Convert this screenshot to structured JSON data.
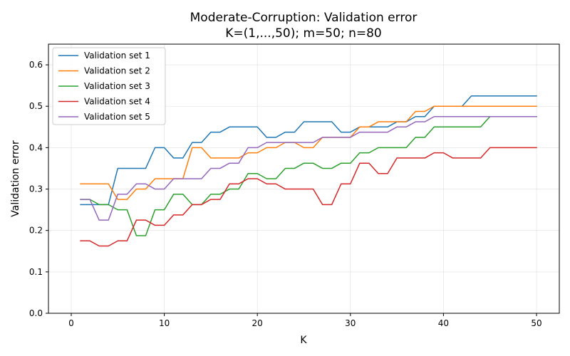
{
  "chart_data": {
    "type": "line",
    "title_line1": "Moderate-Corruption: Validation error",
    "title_line2": "K=(1,...,50); m=50; n=80",
    "xlabel": "K",
    "ylabel": "Validation error",
    "xlim": [
      -2.45,
      52.45
    ],
    "ylim": [
      0.0,
      0.65
    ],
    "xticks": [
      0,
      10,
      20,
      30,
      40,
      50
    ],
    "yticks": [
      0.0,
      0.1,
      0.2,
      0.3,
      0.4,
      0.5,
      0.6
    ],
    "xtick_labels": [
      "0",
      "10",
      "20",
      "30",
      "40",
      "50"
    ],
    "ytick_labels": [
      "0.0",
      "0.1",
      "0.2",
      "0.3",
      "0.4",
      "0.5",
      "0.6"
    ],
    "grid": true,
    "legend_position": "upper-left",
    "x": [
      1,
      2,
      3,
      4,
      5,
      6,
      7,
      8,
      9,
      10,
      11,
      12,
      13,
      14,
      15,
      16,
      17,
      18,
      19,
      20,
      21,
      22,
      23,
      24,
      25,
      26,
      27,
      28,
      29,
      30,
      31,
      32,
      33,
      34,
      35,
      36,
      37,
      38,
      39,
      40,
      41,
      42,
      43,
      44,
      45,
      46,
      47,
      48,
      49,
      50
    ],
    "series": [
      {
        "name": "Validation set 1",
        "color": "#1f77b4",
        "values": [
          0.2625,
          0.2625,
          0.2625,
          0.2625,
          0.35,
          0.35,
          0.35,
          0.35,
          0.4,
          0.4,
          0.375,
          0.375,
          0.4125,
          0.4125,
          0.4375,
          0.4375,
          0.45,
          0.45,
          0.45,
          0.45,
          0.425,
          0.425,
          0.4375,
          0.4375,
          0.4625,
          0.4625,
          0.4625,
          0.4625,
          0.4375,
          0.4375,
          0.45,
          0.45,
          0.45,
          0.45,
          0.4625,
          0.4625,
          0.475,
          0.475,
          0.5,
          0.5,
          0.5,
          0.5,
          0.525,
          0.525,
          0.525,
          0.525,
          0.525,
          0.525,
          0.525,
          0.525
        ]
      },
      {
        "name": "Validation set 2",
        "color": "#ff7f0e",
        "values": [
          0.3125,
          0.3125,
          0.3125,
          0.3125,
          0.275,
          0.275,
          0.3,
          0.3,
          0.325,
          0.325,
          0.325,
          0.325,
          0.4,
          0.4,
          0.375,
          0.375,
          0.375,
          0.375,
          0.3875,
          0.3875,
          0.4,
          0.4,
          0.4125,
          0.4125,
          0.4,
          0.4,
          0.425,
          0.425,
          0.425,
          0.425,
          0.45,
          0.45,
          0.4625,
          0.4625,
          0.4625,
          0.4625,
          0.4875,
          0.4875,
          0.5,
          0.5,
          0.5,
          0.5,
          0.5,
          0.5,
          0.5,
          0.5,
          0.5,
          0.5,
          0.5,
          0.5
        ]
      },
      {
        "name": "Validation set 3",
        "color": "#2ca02c",
        "values": [
          0.275,
          0.275,
          0.2625,
          0.2625,
          0.25,
          0.25,
          0.1875,
          0.1875,
          0.25,
          0.25,
          0.2875,
          0.2875,
          0.2625,
          0.2625,
          0.2875,
          0.2875,
          0.3,
          0.3,
          0.3375,
          0.3375,
          0.325,
          0.325,
          0.35,
          0.35,
          0.3625,
          0.3625,
          0.35,
          0.35,
          0.3625,
          0.3625,
          0.3875,
          0.3875,
          0.4,
          0.4,
          0.4,
          0.4,
          0.425,
          0.425,
          0.45,
          0.45,
          0.45,
          0.45,
          0.45,
          0.45,
          0.475,
          0.475,
          0.475,
          0.475,
          0.475,
          0.475
        ]
      },
      {
        "name": "Validation set 4",
        "color": "#d62728",
        "values": [
          0.175,
          0.175,
          0.1625,
          0.1625,
          0.175,
          0.175,
          0.225,
          0.225,
          0.2125,
          0.2125,
          0.2375,
          0.2375,
          0.2625,
          0.2625,
          0.275,
          0.275,
          0.3125,
          0.3125,
          0.325,
          0.325,
          0.3125,
          0.3125,
          0.3,
          0.3,
          0.3,
          0.3,
          0.2625,
          0.2625,
          0.3125,
          0.3125,
          0.3625,
          0.3625,
          0.3375,
          0.3375,
          0.375,
          0.375,
          0.375,
          0.375,
          0.3875,
          0.3875,
          0.375,
          0.375,
          0.375,
          0.375,
          0.4,
          0.4,
          0.4,
          0.4,
          0.4,
          0.4
        ]
      },
      {
        "name": "Validation set 5",
        "color": "#9467bd",
        "values": [
          0.275,
          0.275,
          0.225,
          0.225,
          0.2875,
          0.2875,
          0.3125,
          0.3125,
          0.3,
          0.3,
          0.325,
          0.325,
          0.325,
          0.325,
          0.35,
          0.35,
          0.3625,
          0.3625,
          0.4,
          0.4,
          0.4125,
          0.4125,
          0.4125,
          0.4125,
          0.4125,
          0.4125,
          0.425,
          0.425,
          0.425,
          0.425,
          0.4375,
          0.4375,
          0.4375,
          0.4375,
          0.45,
          0.45,
          0.4625,
          0.4625,
          0.475,
          0.475,
          0.475,
          0.475,
          0.475,
          0.475,
          0.475,
          0.475,
          0.475,
          0.475,
          0.475,
          0.475
        ]
      }
    ]
  }
}
